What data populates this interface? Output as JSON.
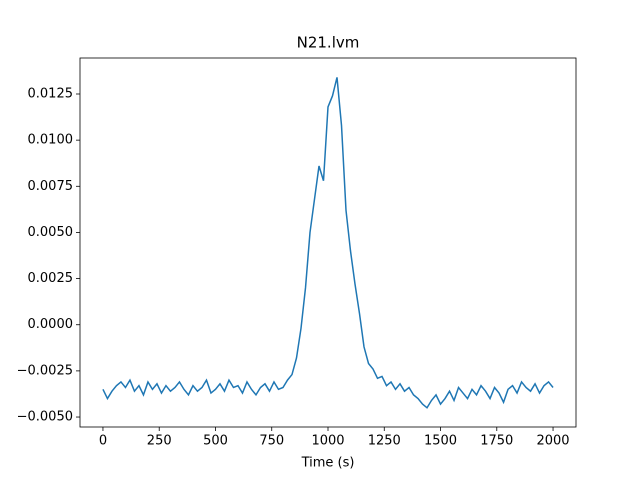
{
  "chart_data": {
    "type": "line",
    "title": "N21.lvm",
    "xlabel": "Time (s)",
    "x": [
      0,
      20,
      40,
      60,
      80,
      100,
      120,
      140,
      160,
      180,
      200,
      220,
      240,
      260,
      280,
      300,
      320,
      340,
      360,
      380,
      400,
      420,
      440,
      460,
      480,
      500,
      520,
      540,
      560,
      580,
      600,
      620,
      640,
      660,
      680,
      700,
      720,
      740,
      760,
      780,
      800,
      820,
      840,
      860,
      880,
      900,
      920,
      940,
      960,
      980,
      1000,
      1020,
      1040,
      1060,
      1080,
      1100,
      1120,
      1140,
      1160,
      1180,
      1200,
      1220,
      1240,
      1260,
      1280,
      1300,
      1320,
      1340,
      1360,
      1380,
      1400,
      1420,
      1440,
      1460,
      1480,
      1500,
      1520,
      1540,
      1560,
      1580,
      1600,
      1620,
      1640,
      1660,
      1680,
      1700,
      1720,
      1740,
      1760,
      1780,
      1800,
      1820,
      1840,
      1860,
      1880,
      1900,
      1920,
      1940,
      1960,
      1980,
      2000
    ],
    "series": [
      {
        "color": "#1f77b4",
        "values": [
          -0.0035,
          -0.004,
          -0.0036,
          -0.0033,
          -0.0031,
          -0.0034,
          -0.003,
          -0.0036,
          -0.0033,
          -0.0038,
          -0.0031,
          -0.0035,
          -0.0032,
          -0.0037,
          -0.0033,
          -0.0036,
          -0.0034,
          -0.0031,
          -0.0035,
          -0.0038,
          -0.0033,
          -0.0036,
          -0.0034,
          -0.003,
          -0.0037,
          -0.0035,
          -0.0032,
          -0.0036,
          -0.003,
          -0.0034,
          -0.0033,
          -0.0037,
          -0.0031,
          -0.0035,
          -0.0038,
          -0.0034,
          -0.0032,
          -0.0036,
          -0.0031,
          -0.0035,
          -0.0034,
          -0.003,
          -0.0027,
          -0.0018,
          -0.0002,
          0.002,
          0.005,
          0.0068,
          0.0086,
          0.0078,
          0.0118,
          0.0124,
          0.0134,
          0.0108,
          0.0062,
          0.004,
          0.0022,
          0.0006,
          -0.0012,
          -0.0021,
          -0.0024,
          -0.0029,
          -0.0028,
          -0.0033,
          -0.0031,
          -0.0035,
          -0.0032,
          -0.0036,
          -0.0034,
          -0.0038,
          -0.004,
          -0.0043,
          -0.0045,
          -0.0041,
          -0.0038,
          -0.0043,
          -0.004,
          -0.0036,
          -0.0041,
          -0.0034,
          -0.0037,
          -0.004,
          -0.0035,
          -0.0038,
          -0.0033,
          -0.0036,
          -0.004,
          -0.0034,
          -0.0037,
          -0.0042,
          -0.0035,
          -0.0033,
          -0.0037,
          -0.0031,
          -0.0034,
          -0.0036,
          -0.0032,
          -0.0037,
          -0.0033,
          -0.0031,
          -0.0034
        ]
      }
    ],
    "xlim": [
      -102,
      2102
    ],
    "ylim": [
      -0.00554,
      0.01445
    ],
    "xticks": [
      0,
      250,
      500,
      750,
      1000,
      1250,
      1500,
      1750,
      2000
    ],
    "yticks": [
      {
        "value": -0.005,
        "label": "−0.0050"
      },
      {
        "value": -0.0025,
        "label": "−0.0025"
      },
      {
        "value": 0,
        "label": "0.0000"
      },
      {
        "value": 0.0025,
        "label": "0.0025"
      },
      {
        "value": 0.005,
        "label": "0.0050"
      },
      {
        "value": 0.0075,
        "label": "0.0075"
      },
      {
        "value": 0.01,
        "label": "0.0100"
      },
      {
        "value": 0.0125,
        "label": "0.0125"
      }
    ]
  }
}
